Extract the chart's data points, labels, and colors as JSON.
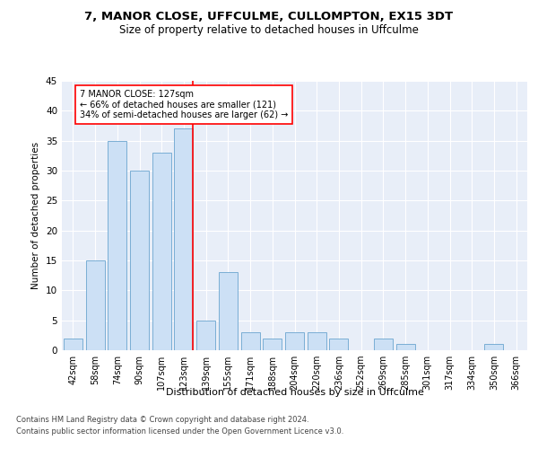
{
  "title1": "7, MANOR CLOSE, UFFCULME, CULLOMPTON, EX15 3DT",
  "title2": "Size of property relative to detached houses in Uffculme",
  "xlabel": "Distribution of detached houses by size in Uffculme",
  "ylabel": "Number of detached properties",
  "categories": [
    "42sqm",
    "58sqm",
    "74sqm",
    "90sqm",
    "107sqm",
    "123sqm",
    "139sqm",
    "155sqm",
    "171sqm",
    "188sqm",
    "204sqm",
    "220sqm",
    "236sqm",
    "252sqm",
    "269sqm",
    "285sqm",
    "301sqm",
    "317sqm",
    "334sqm",
    "350sqm",
    "366sqm"
  ],
  "values": [
    2,
    15,
    35,
    30,
    33,
    37,
    5,
    13,
    3,
    2,
    3,
    3,
    2,
    0,
    2,
    1,
    0,
    0,
    0,
    1,
    0
  ],
  "bar_color": "#cce0f5",
  "bar_edge_color": "#7aaed4",
  "highlight_bar_index": 5,
  "annotation_text": "7 MANOR CLOSE: 127sqm\n← 66% of detached houses are smaller (121)\n34% of semi-detached houses are larger (62) →",
  "ylim": [
    0,
    45
  ],
  "yticks": [
    0,
    5,
    10,
    15,
    20,
    25,
    30,
    35,
    40,
    45
  ],
  "bg_color": "#e8eef8",
  "footer1": "Contains HM Land Registry data © Crown copyright and database right 2024.",
  "footer2": "Contains public sector information licensed under the Open Government Licence v3.0."
}
